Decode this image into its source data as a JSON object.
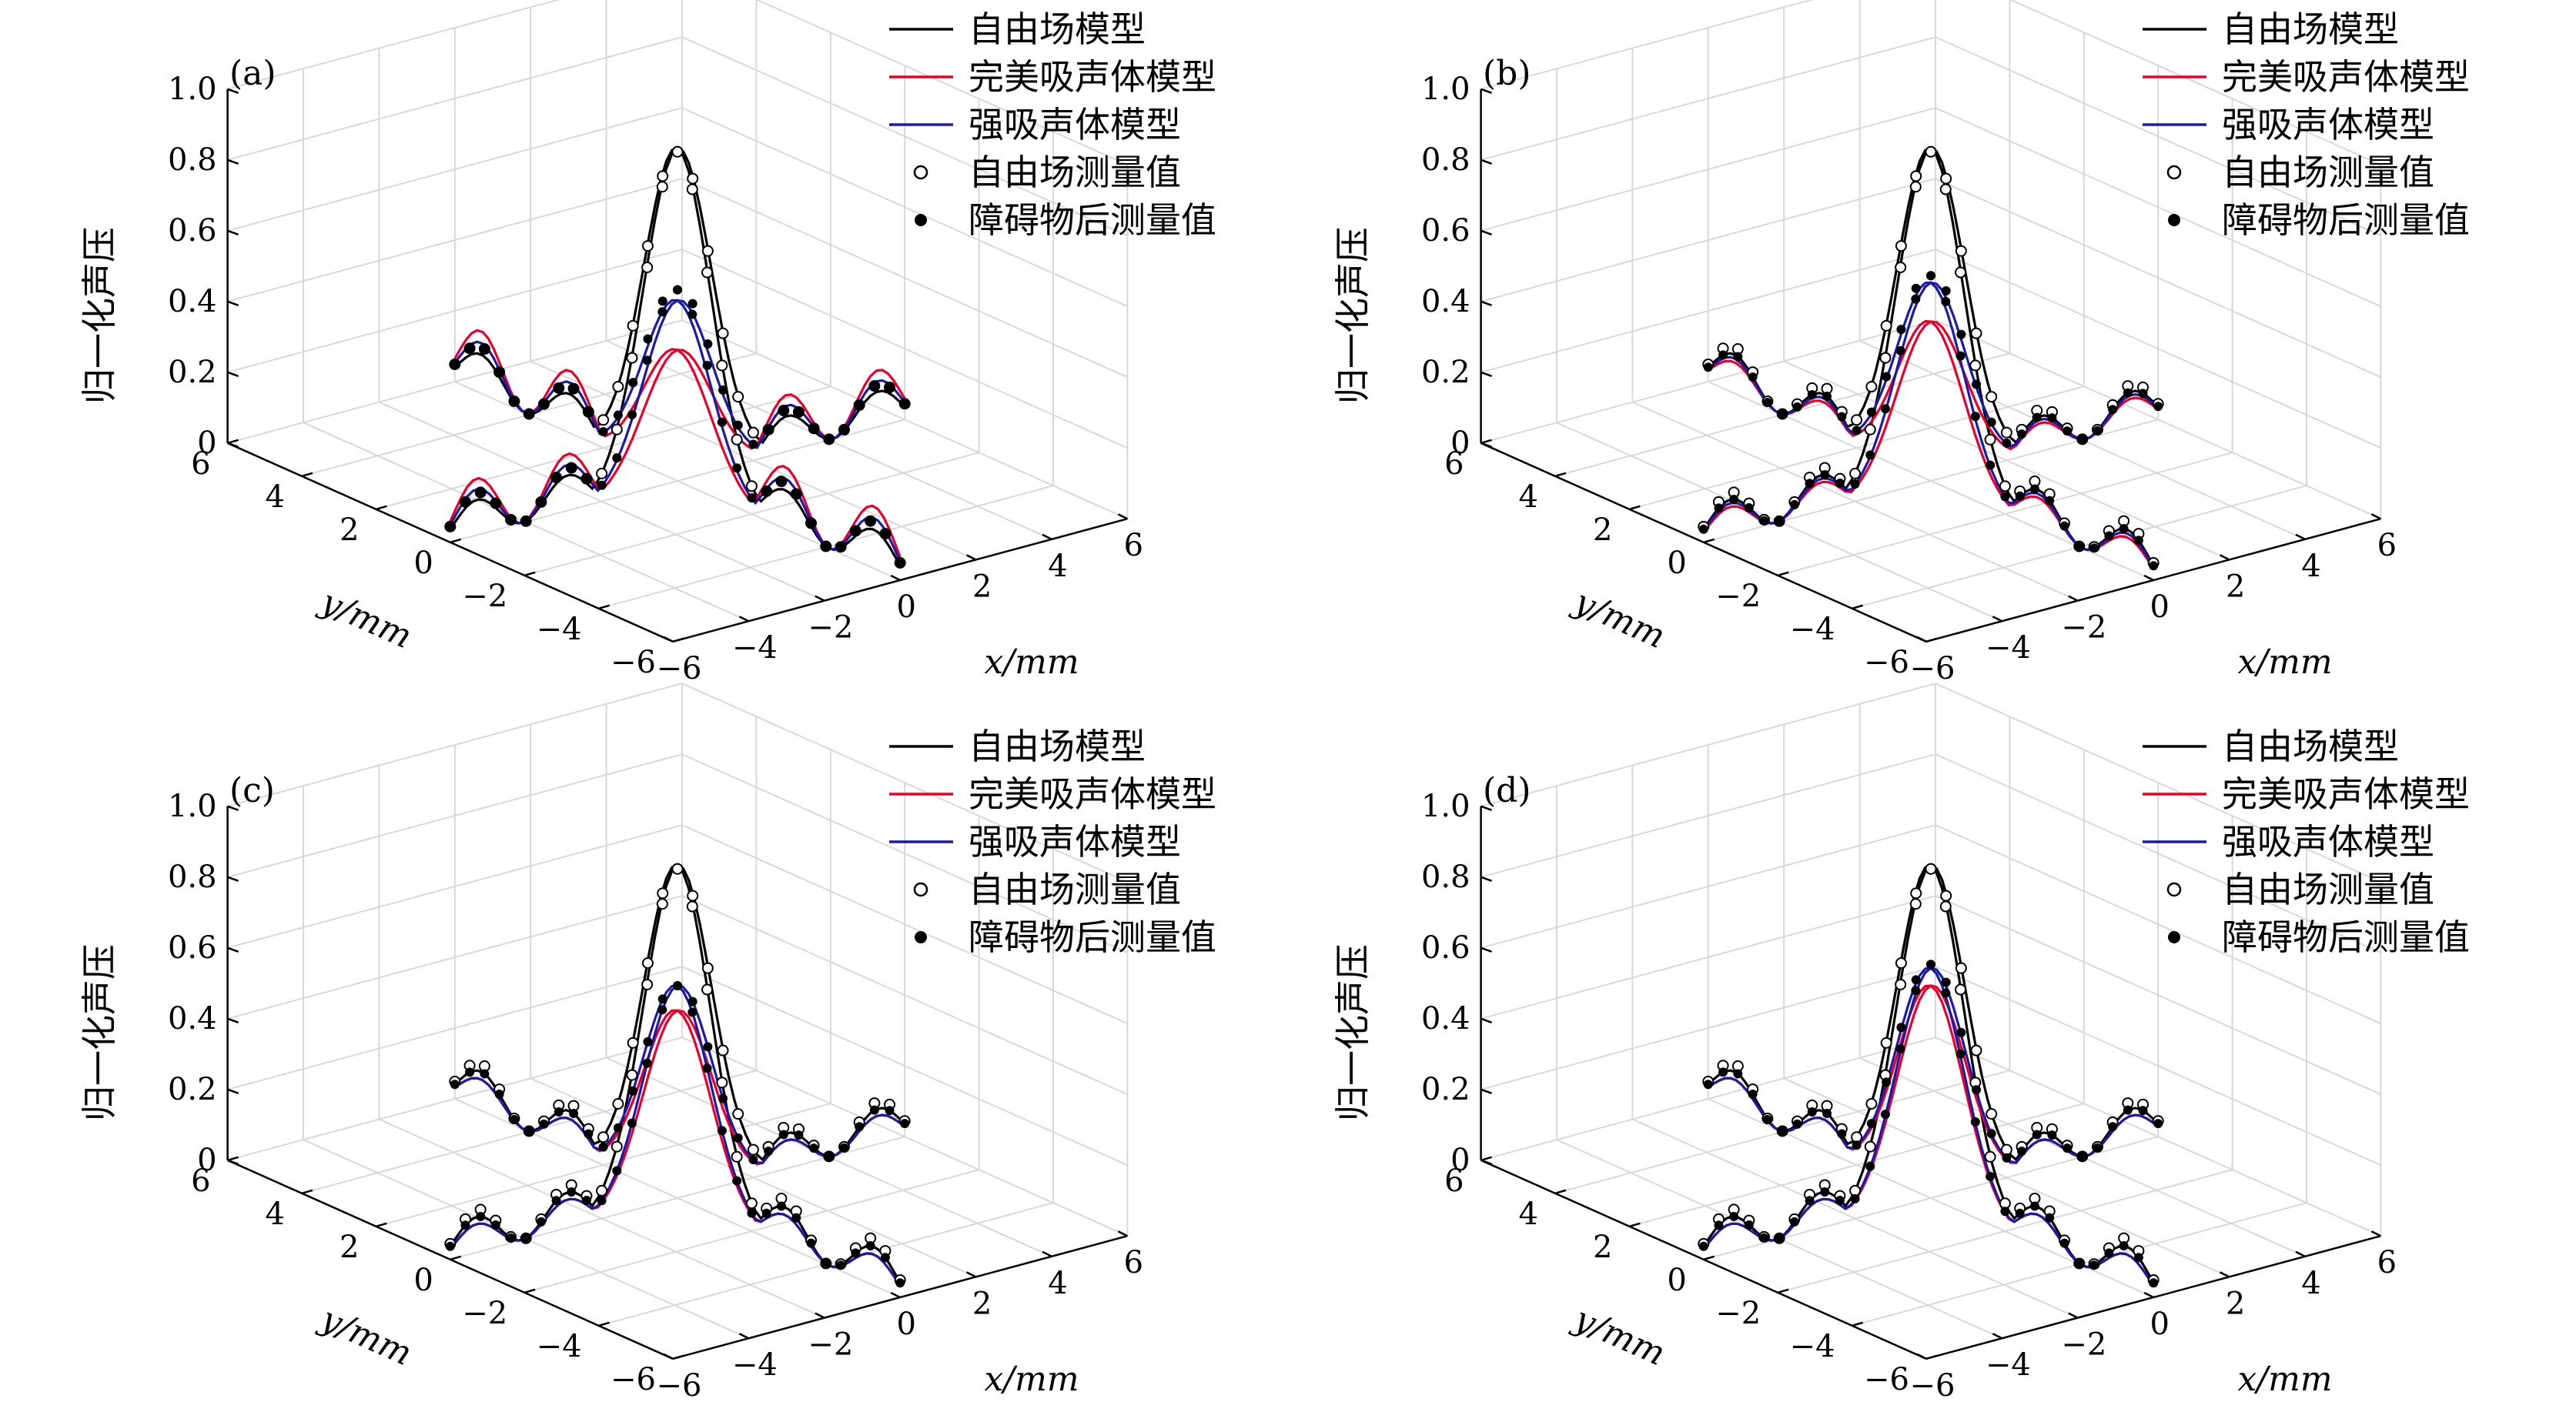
{
  "chart_data": [
    {
      "type": "line",
      "panel_label": "(a)",
      "view": "3d-waterfall",
      "zlabel": "归一化声压",
      "xlabel": "x/mm",
      "ylabel": "y/mm",
      "x_ticks": [
        "−6",
        "−4",
        "−2",
        "0",
        "2",
        "4",
        "6"
      ],
      "y_ticks": [
        "6",
        "4",
        "2",
        "0",
        "−2",
        "−4",
        "−6"
      ],
      "z_ticks": [
        "0",
        "0.2",
        "0.4",
        "0.6",
        "0.8",
        "1.0"
      ],
      "xlim": [
        -6,
        6
      ],
      "ylim": [
        -6,
        6
      ],
      "zlim": [
        0,
        1.0
      ],
      "legend": [
        "自由场模型",
        "完美吸声体模型",
        "强吸声体模型",
        "自由场测量值",
        "障碍物后测量值"
      ],
      "series": [
        {
          "name": "自由场模型",
          "peak": 0.94,
          "side": 0.1
        },
        {
          "name": "完美吸声体模型",
          "peak": 0.37,
          "side": 0.16
        },
        {
          "name": "强吸声体模型",
          "peak": 0.51,
          "side": 0.13
        },
        {
          "name": "自由场测量值",
          "peak": 0.93,
          "side": 0.12
        },
        {
          "name": "障碍物后测量值",
          "peak": 0.54,
          "side": 0.12
        }
      ]
    },
    {
      "type": "line",
      "panel_label": "(b)",
      "view": "3d-waterfall",
      "zlabel": "归一化声压",
      "xlabel": "x/mm",
      "ylabel": "y/mm",
      "x_ticks": [
        "−6",
        "−4",
        "−2",
        "0",
        "2",
        "4",
        "6"
      ],
      "y_ticks": [
        "6",
        "4",
        "2",
        "0",
        "−2",
        "−4",
        "−6"
      ],
      "z_ticks": [
        "0",
        "0.2",
        "0.4",
        "0.6",
        "0.8",
        "1.0"
      ],
      "xlim": [
        -6,
        6
      ],
      "ylim": [
        -6,
        6
      ],
      "zlim": [
        0,
        1.0
      ],
      "legend": [
        "自由场模型",
        "完美吸声体模型",
        "强吸声体模型",
        "自由场测量值",
        "障碍物后测量值"
      ],
      "series": [
        {
          "name": "自由场模型",
          "peak": 0.94,
          "side": 0.1
        },
        {
          "name": "完美吸声体模型",
          "peak": 0.45,
          "side": 0.08
        },
        {
          "name": "强吸声体模型",
          "peak": 0.56,
          "side": 0.09
        },
        {
          "name": "自由场测量值",
          "peak": 0.93,
          "side": 0.12
        },
        {
          "name": "障碍物后测量值",
          "peak": 0.58,
          "side": 0.1
        }
      ]
    },
    {
      "type": "line",
      "panel_label": "(c)",
      "view": "3d-waterfall",
      "zlabel": "归一化声压",
      "xlabel": "x/mm",
      "ylabel": "y/mm",
      "x_ticks": [
        "−6",
        "−4",
        "−2",
        "0",
        "2",
        "4",
        "6"
      ],
      "y_ticks": [
        "6",
        "4",
        "2",
        "0",
        "−2",
        "−4",
        "−6"
      ],
      "z_ticks": [
        "0",
        "0.2",
        "0.4",
        "0.6",
        "0.8",
        "1.0"
      ],
      "xlim": [
        -6,
        6
      ],
      "ylim": [
        -6,
        6
      ],
      "zlim": [
        0,
        1.0
      ],
      "legend": [
        "自由场模型",
        "完美吸声体模型",
        "强吸声体模型",
        "自由场测量值",
        "障碍物后测量值"
      ],
      "series": [
        {
          "name": "自由场模型",
          "peak": 0.94,
          "side": 0.1
        },
        {
          "name": "完美吸声体模型",
          "peak": 0.53,
          "side": 0.08
        },
        {
          "name": "强吸声体模型",
          "peak": 0.6,
          "side": 0.08
        },
        {
          "name": "自由场测量值",
          "peak": 0.93,
          "side": 0.12
        },
        {
          "name": "障碍物后测量值",
          "peak": 0.6,
          "side": 0.1
        }
      ]
    },
    {
      "type": "line",
      "panel_label": "(d)",
      "view": "3d-waterfall",
      "zlabel": "归一化声压",
      "xlabel": "x/mm",
      "ylabel": "y/mm",
      "x_ticks": [
        "−6",
        "−4",
        "−2",
        "0",
        "2",
        "4",
        "6"
      ],
      "y_ticks": [
        "6",
        "4",
        "2",
        "0",
        "−2",
        "−4",
        "−6"
      ],
      "z_ticks": [
        "0",
        "0.2",
        "0.4",
        "0.6",
        "0.8",
        "1.0"
      ],
      "xlim": [
        -6,
        6
      ],
      "ylim": [
        -6,
        6
      ],
      "zlim": [
        0,
        1.0
      ],
      "legend": [
        "自由场模型",
        "完美吸声体模型",
        "强吸声体模型",
        "自由场测量值",
        "障碍物后测量值"
      ],
      "series": [
        {
          "name": "自由场模型",
          "peak": 0.94,
          "side": 0.1
        },
        {
          "name": "完美吸声体模型",
          "peak": 0.6,
          "side": 0.08
        },
        {
          "name": "强吸声体模型",
          "peak": 0.65,
          "side": 0.08
        },
        {
          "name": "自由场测量值",
          "peak": 0.93,
          "side": 0.12
        },
        {
          "name": "障碍物后测量值",
          "peak": 0.66,
          "side": 0.1
        }
      ]
    }
  ],
  "colors": {
    "free_field_model": "#000000",
    "perfect_absorber_model": "#e8002a",
    "strong_absorber_model": "#1a1aa8",
    "grid": "#d8d8d8",
    "axis": "#000000"
  }
}
